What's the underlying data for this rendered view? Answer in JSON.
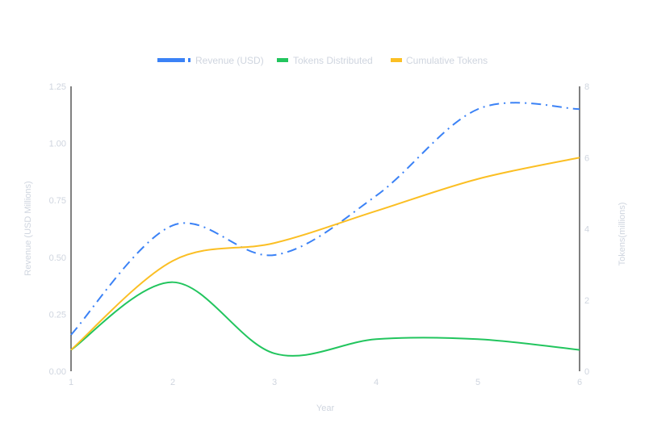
{
  "chart_data": {
    "type": "line",
    "title": "",
    "xlabel": "Year",
    "ylabel": "Revenue (USD Millions)",
    "y2label": "Tokens(millions)",
    "x": [
      1,
      2,
      3,
      4,
      5,
      6
    ],
    "xticks": [
      "1",
      "2",
      "3",
      "4",
      "5",
      "6"
    ],
    "ylim": [
      0,
      1.25
    ],
    "yticks": [
      "0.00",
      "0.25",
      "0.50",
      "0.75",
      "1.00",
      "1.25"
    ],
    "y2lim": [
      0,
      8
    ],
    "y2ticks": [
      "0",
      "2",
      "4",
      "6",
      "8"
    ],
    "grid": false,
    "legend_position": "top",
    "series": [
      {
        "name": "Revenue (USD)",
        "axis": "left",
        "color": "#3b82f6",
        "style": "dash-dot",
        "values": [
          0.16,
          0.64,
          0.51,
          0.77,
          1.15,
          1.15
        ]
      },
      {
        "name": "Tokens Distributed",
        "axis": "right",
        "color": "#22c55e",
        "style": "solid",
        "values": [
          0.6,
          2.5,
          0.5,
          0.9,
          0.9,
          0.6
        ]
      },
      {
        "name": "Cumulative Tokens",
        "axis": "right",
        "color": "#fbbf24",
        "style": "solid",
        "values": [
          0.6,
          3.1,
          3.6,
          4.5,
          5.4,
          6.0
        ]
      }
    ]
  }
}
